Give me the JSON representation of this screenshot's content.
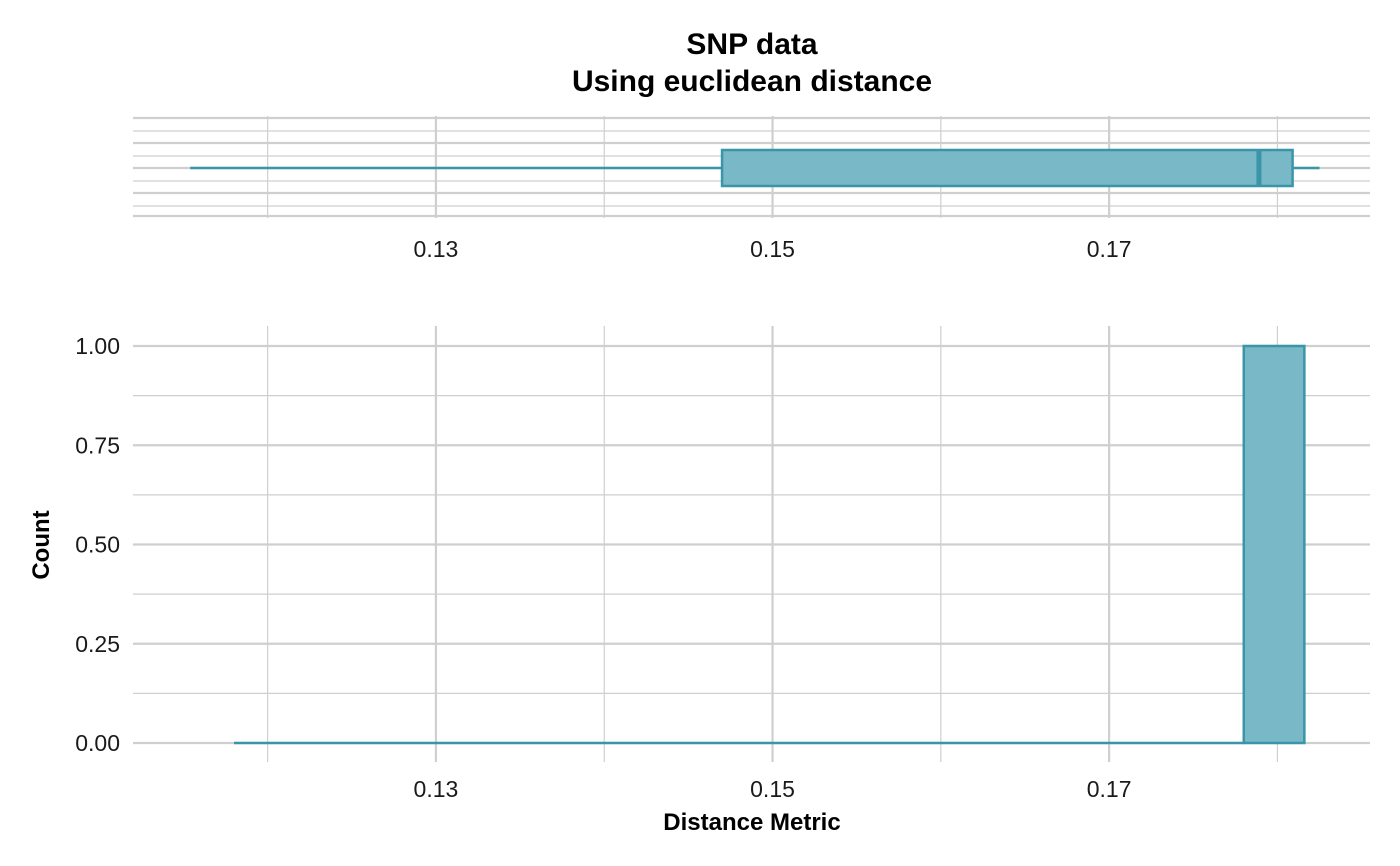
{
  "chart_data": [
    {
      "type": "boxplot",
      "title": "SNP data",
      "subtitle": "Using euclidean distance",
      "xlim": [
        0.112,
        0.1855
      ],
      "x_ticks": [
        "0.13",
        "0.15",
        "0.17"
      ],
      "x_tick_values": [
        0.13,
        0.15,
        0.17
      ],
      "x_minor_grid": [
        0.12,
        0.14,
        0.16,
        0.18
      ],
      "stats": {
        "min": 0.1154,
        "q1": 0.147,
        "median": 0.1789,
        "q3": 0.1809,
        "max": 0.1825
      },
      "grid": true
    },
    {
      "type": "bar",
      "xlabel": "Distance Metric",
      "ylabel": "Count",
      "xlim": [
        0.112,
        0.1855
      ],
      "ylim": [
        0,
        1
      ],
      "x_ticks": [
        "0.13",
        "0.15",
        "0.17"
      ],
      "x_tick_values": [
        0.13,
        0.15,
        0.17
      ],
      "x_minor_grid": [
        0.12,
        0.14,
        0.16,
        0.18
      ],
      "y_ticks": [
        "0.00",
        "0.25",
        "0.50",
        "0.75",
        "1.00"
      ],
      "y_tick_values": [
        0,
        0.25,
        0.5,
        0.75,
        1
      ],
      "bins": [
        {
          "x0": 0.118,
          "x1": 0.178,
          "count": 0
        },
        {
          "x0": 0.178,
          "x1": 0.1816,
          "count": 1
        }
      ],
      "grid": true
    }
  ],
  "colors": {
    "fill": "#79b8c7",
    "stroke": "#3a95a8",
    "grid": "#cfcfcf"
  }
}
